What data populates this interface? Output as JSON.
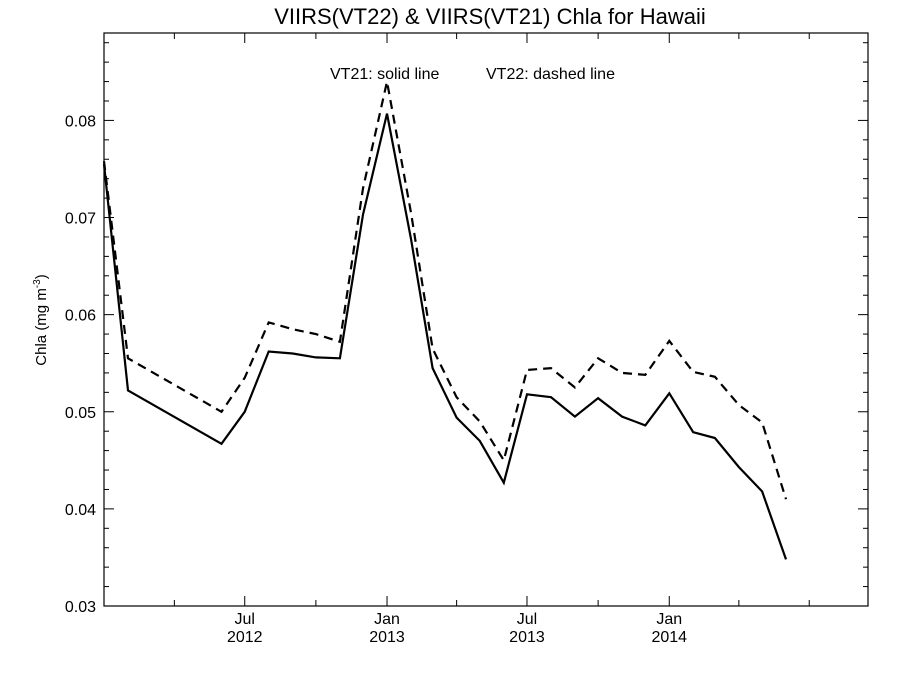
{
  "chart_data": {
    "type": "line",
    "title": "VIIRS(VT22) & VIIRS(VT21)  Chla for Hawaii",
    "legend_text": {
      "solid": "VT21: solid line",
      "dashed": "VT22: dashed line"
    },
    "ylabel_main": "Chla (mg m",
    "ylabel_sup": "-3",
    "ylabel_close": ")",
    "ylim": [
      0.03,
      0.089
    ],
    "y_ticks": [
      {
        "value": 0.03,
        "label": "0.03"
      },
      {
        "value": 0.04,
        "label": "0.04"
      },
      {
        "value": 0.05,
        "label": "0.05"
      },
      {
        "value": 0.06,
        "label": "0.06"
      },
      {
        "value": 0.07,
        "label": "0.07"
      },
      {
        "value": 0.08,
        "label": "0.08"
      }
    ],
    "xlim": [
      "2012-01-01",
      "2014-09-15"
    ],
    "x_major_ticks": [
      {
        "date": "2012-07-01",
        "month": "Jul",
        "year": "2012"
      },
      {
        "date": "2013-01-01",
        "month": "Jan",
        "year": "2013"
      },
      {
        "date": "2013-07-01",
        "month": "Jul",
        "year": "2013"
      },
      {
        "date": "2014-01-01",
        "month": "Jan",
        "year": "2014"
      }
    ],
    "x_minor_ticks": [
      "2012-01-01",
      "2012-04-01",
      "2012-07-01",
      "2012-10-01",
      "2013-01-01",
      "2013-04-01",
      "2013-07-01",
      "2013-10-01",
      "2014-01-01",
      "2014-04-01",
      "2014-07-01"
    ],
    "series": [
      {
        "style": "solid",
        "color": "#000000",
        "dates": [
          "2012-01-01",
          "2012-02-01",
          "2012-06-01",
          "2012-07-01",
          "2012-08-01",
          "2012-09-01",
          "2012-10-01",
          "2012-11-01",
          "2012-12-01",
          "2013-01-01",
          "2013-02-01",
          "2013-03-01",
          "2013-04-01",
          "2013-05-01",
          "2013-06-01",
          "2013-07-01",
          "2013-08-01",
          "2013-09-01",
          "2013-10-01",
          "2013-11-01",
          "2013-12-01",
          "2014-01-01",
          "2014-02-01",
          "2014-03-01",
          "2014-04-01",
          "2014-05-01",
          "2014-06-01"
        ],
        "values": [
          0.0755,
          0.0522,
          0.0467,
          0.05,
          0.0562,
          0.056,
          0.0556,
          0.0555,
          0.0703,
          0.0807,
          0.0678,
          0.0545,
          0.0494,
          0.047,
          0.0427,
          0.0518,
          0.0515,
          0.0495,
          0.0514,
          0.0495,
          0.0486,
          0.0519,
          0.0479,
          0.0473,
          0.0443,
          0.0418,
          0.0348
        ]
      },
      {
        "style": "dashed",
        "color": "#000000",
        "dates": [
          "2012-01-01",
          "2012-02-01",
          "2012-06-01",
          "2012-07-01",
          "2012-08-01",
          "2012-09-01",
          "2012-10-01",
          "2012-11-01",
          "2012-12-01",
          "2013-01-01",
          "2013-02-01",
          "2013-03-01",
          "2013-04-01",
          "2013-05-01",
          "2013-06-01",
          "2013-07-01",
          "2013-08-01",
          "2013-09-01",
          "2013-10-01",
          "2013-11-01",
          "2013-12-01",
          "2014-01-01",
          "2014-02-01",
          "2014-03-01",
          "2014-04-01",
          "2014-05-01",
          "2014-06-01"
        ],
        "values": [
          0.0758,
          0.0555,
          0.05,
          0.0535,
          0.0592,
          0.0585,
          0.058,
          0.0572,
          0.073,
          0.084,
          0.0705,
          0.0565,
          0.0515,
          0.049,
          0.045,
          0.0543,
          0.0545,
          0.0525,
          0.0555,
          0.054,
          0.0538,
          0.0573,
          0.0541,
          0.0536,
          0.0507,
          0.0489,
          0.041
        ]
      }
    ],
    "grid": false
  }
}
